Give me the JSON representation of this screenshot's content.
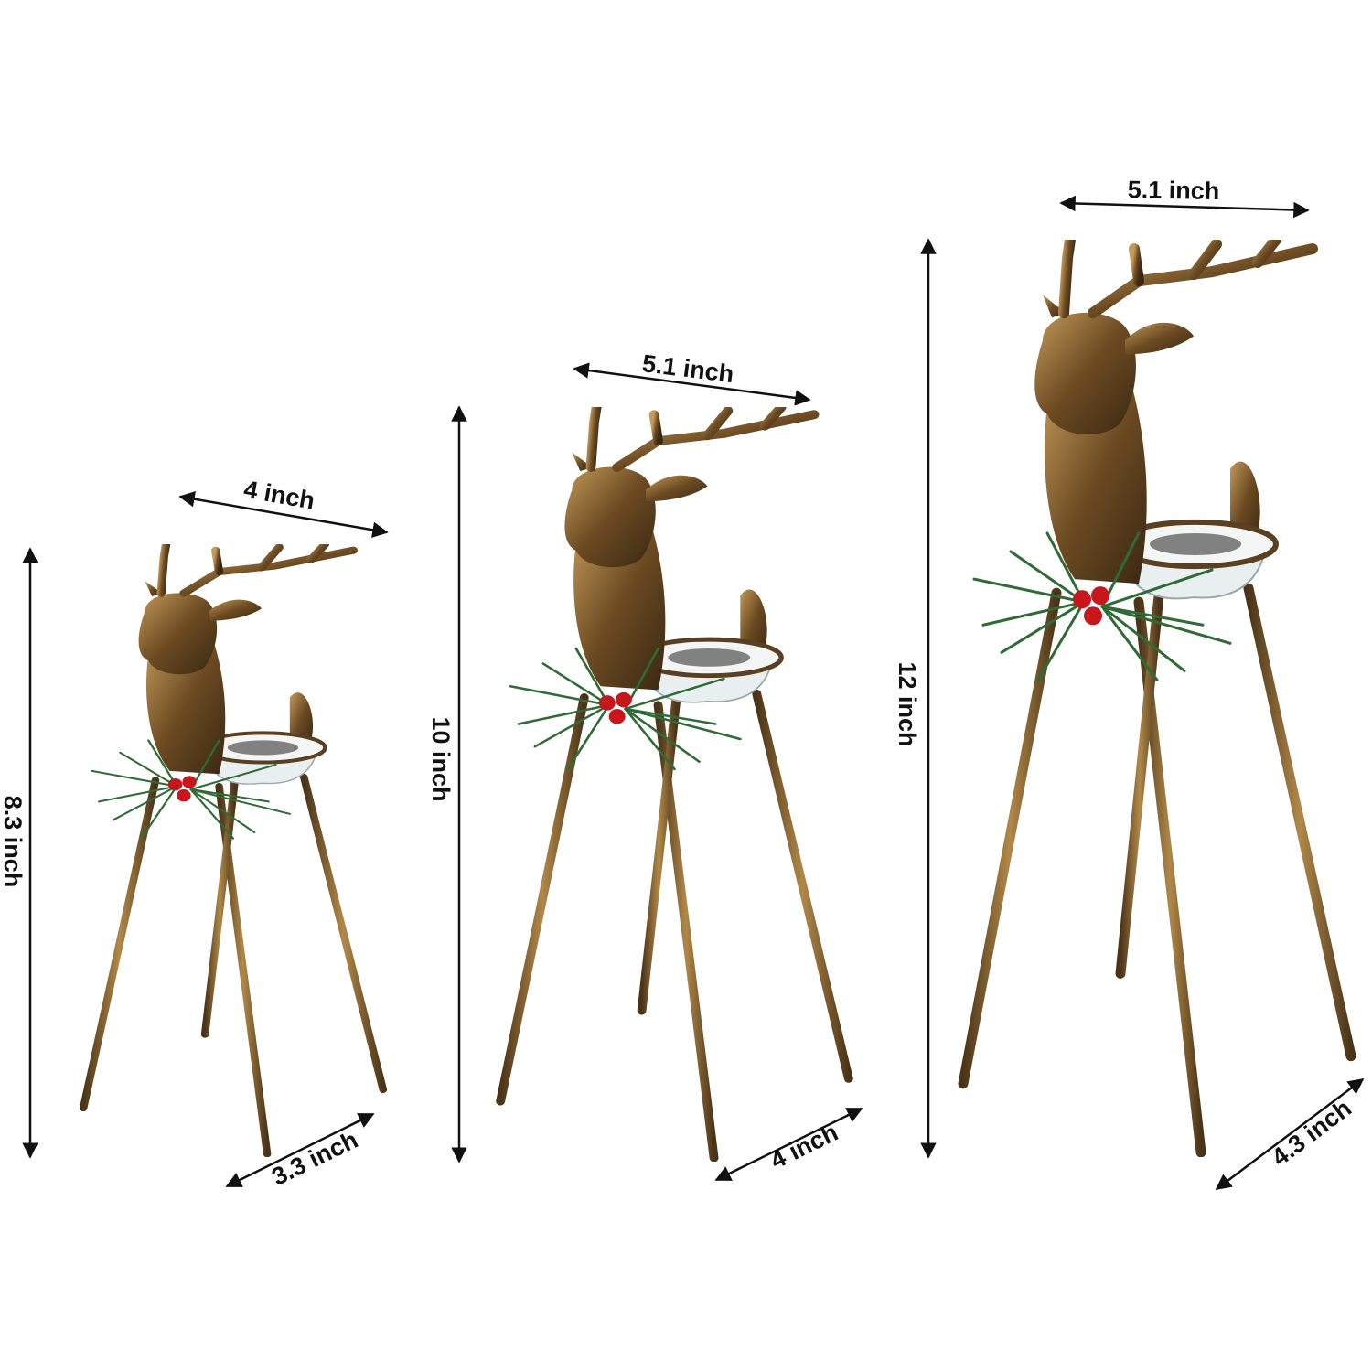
{
  "items": [
    {
      "width": "4 inch",
      "height": "8.3 inch",
      "depth": "3.3 inch"
    },
    {
      "width": "5.1 inch",
      "height": "10 inch",
      "depth": "4 inch"
    },
    {
      "width": "5.1 inch",
      "height": "12 inch",
      "depth": "4.3 inch"
    }
  ]
}
